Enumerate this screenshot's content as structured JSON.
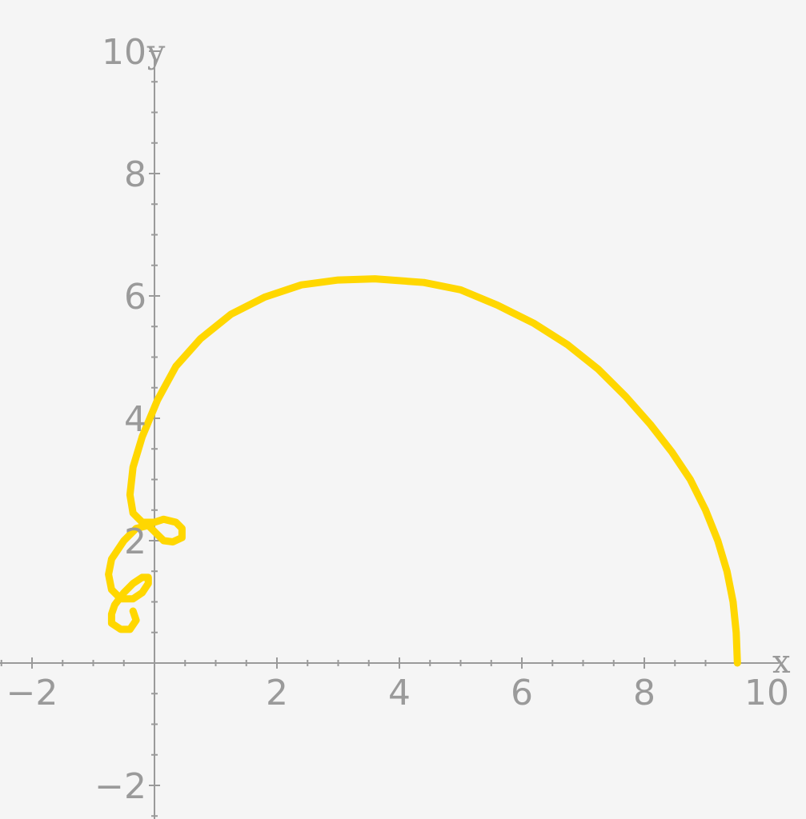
{
  "chart_data": {
    "type": "line",
    "title": "",
    "xlabel": "x",
    "ylabel": "y",
    "xlim": [
      -2.5,
      10.3
    ],
    "ylim": [
      -2.5,
      10.2
    ],
    "x_ticks": [
      -2,
      2,
      4,
      6,
      8,
      10
    ],
    "y_ticks": [
      -2,
      2,
      4,
      6,
      8,
      10
    ],
    "x_tick_labels": [
      "−2",
      "2",
      "4",
      "6",
      "8",
      "10"
    ],
    "y_tick_labels": [
      "−2",
      "2",
      "4",
      "6",
      "8",
      "10"
    ],
    "minor_tick_step": 0.5,
    "grid": false,
    "legend": "none",
    "colors": {
      "background": "#f5f5f5",
      "axis": "#9a9a9a",
      "curve": "#ffd700"
    },
    "series": [
      {
        "x": [
          9.52,
          9.5,
          9.45,
          9.35,
          9.2,
          9.0,
          8.75,
          8.45,
          8.1,
          7.7,
          7.25,
          6.75,
          6.2,
          5.6,
          5.0,
          4.4,
          3.6,
          3.0,
          2.4,
          1.8,
          1.25,
          0.75,
          0.35,
          0.05,
          -0.2,
          -0.35,
          -0.4,
          -0.35,
          -0.2,
          0.0,
          0.15,
          0.35,
          0.45,
          0.45,
          0.3,
          0.15,
          0.05,
          -0.1,
          -0.3,
          -0.5,
          -0.7,
          -0.75,
          -0.7,
          -0.55,
          -0.35,
          -0.2,
          -0.1,
          -0.1,
          -0.2,
          -0.35,
          -0.5,
          -0.65,
          -0.7,
          -0.7,
          -0.55,
          -0.4,
          -0.3,
          -0.35
        ],
        "y": [
          0.0,
          0.5,
          1.0,
          1.5,
          2.0,
          2.5,
          3.0,
          3.45,
          3.9,
          4.35,
          4.8,
          5.2,
          5.55,
          5.85,
          6.1,
          6.22,
          6.28,
          6.26,
          6.18,
          5.98,
          5.7,
          5.3,
          4.85,
          4.3,
          3.7,
          3.2,
          2.75,
          2.45,
          2.3,
          2.3,
          2.35,
          2.3,
          2.2,
          2.05,
          1.98,
          2.0,
          2.1,
          2.25,
          2.2,
          2.0,
          1.7,
          1.45,
          1.2,
          1.05,
          1.05,
          1.15,
          1.3,
          1.4,
          1.4,
          1.3,
          1.15,
          0.95,
          0.8,
          0.65,
          0.55,
          0.55,
          0.7,
          0.85
        ]
      }
    ]
  }
}
